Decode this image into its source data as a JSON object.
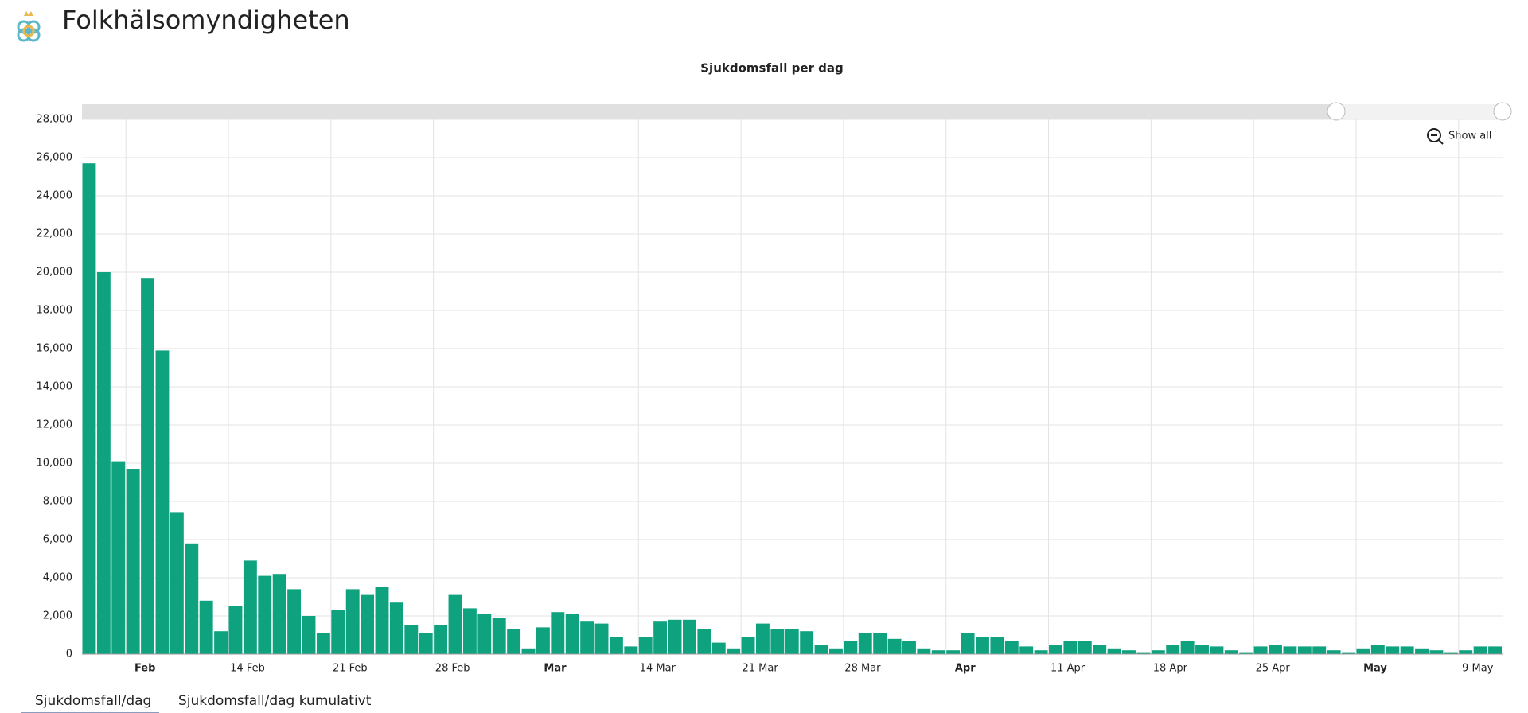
{
  "header": {
    "title": "Folkhälsomyndigheten"
  },
  "controls": {
    "show_all": "Show all"
  },
  "tabs": [
    "Sjukdomsfall/dag",
    "Sjukdomsfall/dag kumulativt"
  ],
  "chart_data": {
    "type": "bar",
    "title": "Sjukdomsfall per dag",
    "categories": [
      null,
      null,
      null,
      "Feb",
      null,
      null,
      null,
      null,
      null,
      null,
      "14 Feb",
      null,
      null,
      null,
      null,
      null,
      null,
      "21 Feb",
      null,
      null,
      null,
      null,
      null,
      null,
      "28 Feb",
      null,
      null,
      null,
      null,
      null,
      null,
      "Mar",
      null,
      null,
      null,
      null,
      null,
      null,
      "14 Mar",
      null,
      null,
      null,
      null,
      null,
      null,
      "21 Mar",
      null,
      null,
      null,
      null,
      null,
      null,
      "28 Mar",
      null,
      null,
      null,
      null,
      null,
      null,
      "Apr",
      null,
      null,
      null,
      null,
      null,
      null,
      "11 Apr",
      null,
      null,
      null,
      null,
      null,
      null,
      "18 Apr",
      null,
      null,
      null,
      null,
      null,
      null,
      "25 Apr",
      null,
      null,
      null,
      null,
      null,
      null,
      "May",
      null,
      null,
      null,
      null,
      null,
      null,
      "9 May",
      null,
      null
    ],
    "values": [
      25700,
      20000,
      10100,
      9700,
      19700,
      15900,
      7400,
      5800,
      2800,
      1200,
      2500,
      4900,
      4100,
      4200,
      3400,
      2000,
      1100,
      2300,
      3400,
      3100,
      3500,
      2700,
      1500,
      1100,
      1500,
      3100,
      2400,
      2100,
      1900,
      1300,
      300,
      1400,
      2200,
      2100,
      1700,
      1600,
      900,
      400,
      900,
      1700,
      1800,
      1800,
      1300,
      600,
      300,
      900,
      1600,
      1300,
      1300,
      1200,
      500,
      300,
      700,
      1100,
      1100,
      800,
      700,
      300,
      200,
      200,
      1100,
      900,
      900,
      700,
      400,
      200,
      500,
      700,
      700,
      500,
      300,
      200,
      100,
      200,
      500,
      700,
      500,
      400,
      200,
      100,
      400,
      500,
      400,
      400,
      400,
      200,
      100,
      300,
      500,
      400,
      400,
      300,
      200,
      100,
      200,
      400,
      400
    ],
    "color": "#0fa27f",
    "ylim": [
      0,
      28000
    ],
    "yticks": [
      0,
      {
        "value": 2000,
        "label": "2,000"
      },
      {
        "value": 4000,
        "label": "4,000"
      },
      {
        "value": 6000,
        "label": "6,000"
      },
      {
        "value": 8000,
        "label": "8,000"
      },
      {
        "value": 10000,
        "label": "10,000"
      },
      {
        "value": 12000,
        "label": "12,000"
      },
      {
        "value": 14000,
        "label": "14,000"
      },
      {
        "value": 16000,
        "label": "16,000"
      },
      {
        "value": 18000,
        "label": "18,000"
      },
      {
        "value": 20000,
        "label": "20,000"
      },
      {
        "value": 22000,
        "label": "22,000"
      },
      {
        "value": 24000,
        "label": "24,000"
      },
      {
        "value": 26000,
        "label": "26,000"
      },
      {
        "value": 28000,
        "label": "28,000"
      }
    ],
    "grid": true
  }
}
